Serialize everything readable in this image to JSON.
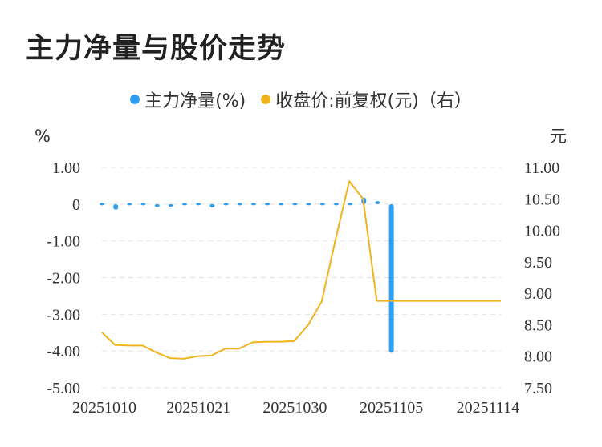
{
  "title": "主力净量与股价走势",
  "legend": {
    "net_label": "主力净量(%)",
    "price_label": "收盘价:前复权(元)（右）"
  },
  "colors": {
    "net": "#2e9ef0",
    "price": "#f0b31c",
    "grid": "#e2e2e2"
  },
  "chart_data": {
    "type": "bar+line",
    "title": "主力净量与股价走势",
    "x_tick_labels": [
      "20251010",
      "20251021",
      "20251030",
      "20251105",
      "20251114"
    ],
    "x_tick_index": [
      0,
      7,
      14,
      21,
      28
    ],
    "y_left": {
      "unit": "%",
      "range": [
        -5,
        1
      ],
      "ticks": [
        1,
        0,
        -1,
        -2,
        -3,
        -4,
        -5
      ],
      "tick_labels": [
        "1.00",
        "0",
        "-1.00",
        "-2.00",
        "-3.00",
        "-4.00",
        "-5.00"
      ]
    },
    "y_right": {
      "unit": "元",
      "range": [
        7.5,
        11
      ],
      "ticks": [
        11,
        10.5,
        10,
        9.5,
        9,
        8.5,
        8,
        7.5
      ],
      "tick_labels": [
        "11.00",
        "10.50",
        "10.00",
        "9.50",
        "9.00",
        "8.50",
        "8.00",
        "7.50"
      ]
    },
    "grid": true,
    "legend_position": "top",
    "series": [
      {
        "name": "主力净量(%)",
        "type": "bar",
        "axis": "left",
        "values": [
          0.01,
          -0.15,
          0.01,
          0.0,
          -0.08,
          -0.07,
          -0.02,
          0.0,
          -0.09,
          0.0,
          0.05,
          0.05,
          0.0,
          0.06,
          0.0,
          0.0,
          0.0,
          0.0,
          0.05,
          0.18,
          0.08,
          -4.05,
          null,
          null,
          null,
          null,
          null,
          null,
          null,
          null
        ]
      },
      {
        "name": "收盘价:前复权(元)（右）",
        "type": "line",
        "axis": "right",
        "values": [
          8.38,
          8.18,
          8.17,
          8.17,
          8.06,
          7.97,
          7.96,
          8.0,
          8.01,
          8.12,
          8.12,
          8.22,
          8.23,
          8.23,
          8.24,
          8.49,
          8.87,
          9.85,
          10.78,
          10.5,
          8.88,
          8.88,
          8.88,
          8.88,
          8.88,
          8.88,
          8.88,
          8.88,
          8.88,
          8.88
        ],
        "x_offset": -1
      }
    ]
  }
}
